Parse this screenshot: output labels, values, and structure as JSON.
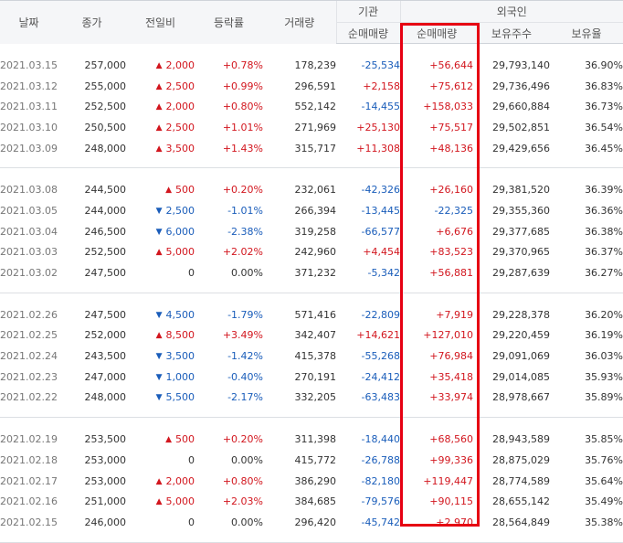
{
  "header": {
    "date": "날짜",
    "close": "종가",
    "change": "전일비",
    "rate": "등락률",
    "volume": "거래량",
    "institution": "기관",
    "inst_net": "순매매량",
    "foreigner": "외국인",
    "foreign_net": "순매매량",
    "foreign_holding": "보유주수",
    "foreign_ratio": "보유율"
  },
  "arrows": {
    "up": "▲",
    "down": "▼"
  },
  "highlight_color": "#e60012",
  "up_color": "#d2161e",
  "down_color": "#1a5dba",
  "groups": [
    [
      {
        "date": "2021.03.15",
        "close": "257,000",
        "dir": "up",
        "change": "2,000",
        "rate": "+0.78%",
        "volume": "178,239",
        "inst": "-25,534",
        "foreign": "+56,644",
        "holding": "29,793,140",
        "ratio": "36.90%"
      },
      {
        "date": "2021.03.12",
        "close": "255,000",
        "dir": "up",
        "change": "2,500",
        "rate": "+0.99%",
        "volume": "296,591",
        "inst": "+2,158",
        "foreign": "+75,612",
        "holding": "29,736,496",
        "ratio": "36.83%"
      },
      {
        "date": "2021.03.11",
        "close": "252,500",
        "dir": "up",
        "change": "2,000",
        "rate": "+0.80%",
        "volume": "552,142",
        "inst": "-14,455",
        "foreign": "+158,033",
        "holding": "29,660,884",
        "ratio": "36.73%"
      },
      {
        "date": "2021.03.10",
        "close": "250,500",
        "dir": "up",
        "change": "2,500",
        "rate": "+1.01%",
        "volume": "271,969",
        "inst": "+25,130",
        "foreign": "+75,517",
        "holding": "29,502,851",
        "ratio": "36.54%"
      },
      {
        "date": "2021.03.09",
        "close": "248,000",
        "dir": "up",
        "change": "3,500",
        "rate": "+1.43%",
        "volume": "315,717",
        "inst": "+11,308",
        "foreign": "+48,136",
        "holding": "29,429,656",
        "ratio": "36.45%"
      }
    ],
    [
      {
        "date": "2021.03.08",
        "close": "244,500",
        "dir": "up",
        "change": "500",
        "rate": "+0.20%",
        "volume": "232,061",
        "inst": "-42,326",
        "foreign": "+26,160",
        "holding": "29,381,520",
        "ratio": "36.39%"
      },
      {
        "date": "2021.03.05",
        "close": "244,000",
        "dir": "down",
        "change": "2,500",
        "rate": "-1.01%",
        "volume": "266,394",
        "inst": "-13,445",
        "foreign": "-22,325",
        "holding": "29,355,360",
        "ratio": "36.36%"
      },
      {
        "date": "2021.03.04",
        "close": "246,500",
        "dir": "down",
        "change": "6,000",
        "rate": "-2.38%",
        "volume": "319,258",
        "inst": "-66,577",
        "foreign": "+6,676",
        "holding": "29,377,685",
        "ratio": "36.38%"
      },
      {
        "date": "2021.03.03",
        "close": "252,500",
        "dir": "up",
        "change": "5,000",
        "rate": "+2.02%",
        "volume": "242,960",
        "inst": "+4,454",
        "foreign": "+83,523",
        "holding": "29,370,965",
        "ratio": "36.37%"
      },
      {
        "date": "2021.03.02",
        "close": "247,500",
        "dir": "none",
        "change": "0",
        "rate": "0.00%",
        "volume": "371,232",
        "inst": "-5,342",
        "foreign": "+56,881",
        "holding": "29,287,639",
        "ratio": "36.27%"
      }
    ],
    [
      {
        "date": "2021.02.26",
        "close": "247,500",
        "dir": "down",
        "change": "4,500",
        "rate": "-1.79%",
        "volume": "571,416",
        "inst": "-22,809",
        "foreign": "+7,919",
        "holding": "29,228,378",
        "ratio": "36.20%"
      },
      {
        "date": "2021.02.25",
        "close": "252,000",
        "dir": "up",
        "change": "8,500",
        "rate": "+3.49%",
        "volume": "342,407",
        "inst": "+14,621",
        "foreign": "+127,010",
        "holding": "29,220,459",
        "ratio": "36.19%"
      },
      {
        "date": "2021.02.24",
        "close": "243,500",
        "dir": "down",
        "change": "3,500",
        "rate": "-1.42%",
        "volume": "415,378",
        "inst": "-55,268",
        "foreign": "+76,984",
        "holding": "29,091,069",
        "ratio": "36.03%"
      },
      {
        "date": "2021.02.23",
        "close": "247,000",
        "dir": "down",
        "change": "1,000",
        "rate": "-0.40%",
        "volume": "270,191",
        "inst": "-24,412",
        "foreign": "+35,418",
        "holding": "29,014,085",
        "ratio": "35.93%"
      },
      {
        "date": "2021.02.22",
        "close": "248,000",
        "dir": "down",
        "change": "5,500",
        "rate": "-2.17%",
        "volume": "332,205",
        "inst": "-63,483",
        "foreign": "+33,974",
        "holding": "28,978,667",
        "ratio": "35.89%"
      }
    ],
    [
      {
        "date": "2021.02.19",
        "close": "253,500",
        "dir": "up",
        "change": "500",
        "rate": "+0.20%",
        "volume": "311,398",
        "inst": "-18,440",
        "foreign": "+68,560",
        "holding": "28,943,589",
        "ratio": "35.85%"
      },
      {
        "date": "2021.02.18",
        "close": "253,000",
        "dir": "none",
        "change": "0",
        "rate": "0.00%",
        "volume": "415,772",
        "inst": "-26,788",
        "foreign": "+99,336",
        "holding": "28,875,029",
        "ratio": "35.76%"
      },
      {
        "date": "2021.02.17",
        "close": "253,000",
        "dir": "up",
        "change": "2,000",
        "rate": "+0.80%",
        "volume": "386,290",
        "inst": "-82,180",
        "foreign": "+119,447",
        "holding": "28,774,589",
        "ratio": "35.64%"
      },
      {
        "date": "2021.02.16",
        "close": "251,000",
        "dir": "up",
        "change": "5,000",
        "rate": "+2.03%",
        "volume": "384,685",
        "inst": "-79,576",
        "foreign": "+90,115",
        "holding": "28,655,142",
        "ratio": "35.49%"
      },
      {
        "date": "2021.02.15",
        "close": "246,000",
        "dir": "none",
        "change": "0",
        "rate": "0.00%",
        "volume": "296,420",
        "inst": "-45,742",
        "foreign": "+2,970",
        "holding": "28,564,849",
        "ratio": "35.38%"
      }
    ]
  ]
}
